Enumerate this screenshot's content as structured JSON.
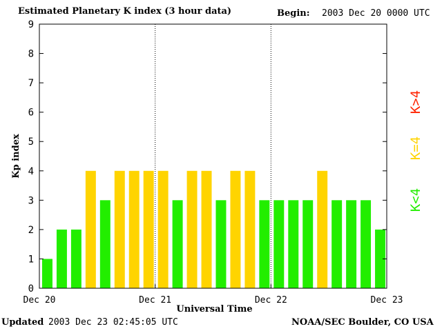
{
  "header": {
    "title": "Estimated Planetary K index (3 hour data)",
    "begin_label": "Begin:",
    "begin_value": "2003 Dec 20 0000 UTC"
  },
  "footer": {
    "updated_label": "Updated",
    "updated_value": "2003 Dec 23 02:45:05 UTC",
    "credit": "NOAA/SEC Boulder, CO USA"
  },
  "legend": [
    {
      "label": "K>4",
      "color": "#ff2200"
    },
    {
      "label": "K=4",
      "color": "#ffd400"
    },
    {
      "label": "K<4",
      "color": "#22ee00"
    }
  ],
  "colors": {
    "low": "#22ee00",
    "equal": "#ffd400",
    "high": "#ff2200"
  },
  "chart_data": {
    "type": "bar",
    "title": "Estimated Planetary K index (3 hour data)",
    "xlabel": "Universal Time",
    "ylabel": "Kp index",
    "ylim": [
      0,
      9
    ],
    "yticks": [
      "0",
      "1",
      "2",
      "3",
      "4",
      "5",
      "6",
      "7",
      "8",
      "9"
    ],
    "xticks": [
      "Dec 20",
      "Dec 21",
      "Dec 22",
      "Dec 23"
    ],
    "interval_hours": 3,
    "values": [
      1,
      2,
      2,
      4,
      3,
      4,
      4,
      4,
      4,
      3,
      4,
      4,
      3,
      4,
      4,
      3,
      3,
      3,
      3,
      4,
      3,
      3,
      3,
      2
    ]
  }
}
